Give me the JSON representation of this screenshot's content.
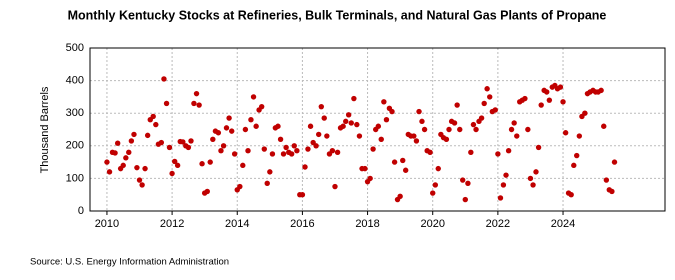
{
  "chart_data": {
    "type": "scatter",
    "title": "Monthly Kentucky Stocks at Refineries, Bulk Terminals, and Natural Gas Plants of Propane",
    "y_label": "Thousand Barrels",
    "source": "Source: U.S. Energy Information Administration",
    "color": "#c00000",
    "grid": true,
    "xlim": [
      2009.48,
      2027.13
    ],
    "xticks": [
      2010,
      2012,
      2014,
      2016,
      2018,
      2020,
      2022,
      2024
    ],
    "ylim": [
      0,
      500
    ],
    "yticks": [
      0,
      100,
      200,
      300,
      400,
      500
    ],
    "x": [
      2010,
      2010.08,
      2010.17,
      2010.25,
      2010.33,
      2010.42,
      2010.5,
      2010.58,
      2010.67,
      2010.75,
      2010.83,
      2010.92,
      2011,
      2011.08,
      2011.17,
      2011.25,
      2011.33,
      2011.42,
      2011.5,
      2011.58,
      2011.67,
      2011.75,
      2011.83,
      2011.92,
      2012,
      2012.08,
      2012.17,
      2012.25,
      2012.33,
      2012.42,
      2012.5,
      2012.58,
      2012.67,
      2012.75,
      2012.83,
      2012.92,
      2013,
      2013.08,
      2013.17,
      2013.25,
      2013.33,
      2013.42,
      2013.5,
      2013.58,
      2013.67,
      2013.75,
      2013.83,
      2013.92,
      2014,
      2014.08,
      2014.17,
      2014.25,
      2014.33,
      2014.42,
      2014.5,
      2014.58,
      2014.67,
      2014.75,
      2014.83,
      2014.92,
      2015,
      2015.08,
      2015.17,
      2015.25,
      2015.33,
      2015.42,
      2015.5,
      2015.58,
      2015.67,
      2015.75,
      2015.83,
      2015.92,
      2016,
      2016.08,
      2016.17,
      2016.25,
      2016.33,
      2016.42,
      2016.5,
      2016.58,
      2016.67,
      2016.75,
      2016.83,
      2016.92,
      2017,
      2017.08,
      2017.17,
      2017.25,
      2017.33,
      2017.42,
      2017.5,
      2017.58,
      2017.67,
      2017.75,
      2017.83,
      2017.92,
      2018,
      2018.08,
      2018.17,
      2018.25,
      2018.33,
      2018.42,
      2018.5,
      2018.58,
      2018.67,
      2018.75,
      2018.83,
      2018.92,
      2019,
      2019.08,
      2019.17,
      2019.25,
      2019.33,
      2019.42,
      2019.5,
      2019.58,
      2019.67,
      2019.75,
      2019.83,
      2019.92,
      2020,
      2020.08,
      2020.17,
      2020.25,
      2020.33,
      2020.42,
      2020.5,
      2020.58,
      2020.67,
      2020.75,
      2020.83,
      2020.92,
      2021,
      2021.08,
      2021.17,
      2021.25,
      2021.33,
      2021.42,
      2021.5,
      2021.58,
      2021.67,
      2021.75,
      2021.83,
      2021.92,
      2022,
      2022.08,
      2022.17,
      2022.25,
      2022.33,
      2022.42,
      2022.5,
      2022.58,
      2022.67,
      2022.75,
      2022.83,
      2022.92,
      2023,
      2023.08,
      2023.17,
      2023.25,
      2023.33,
      2023.42,
      2023.5,
      2023.58,
      2023.67,
      2023.75,
      2023.83,
      2023.92,
      2024,
      2024.08,
      2024.17,
      2024.25,
      2024.33,
      2024.42,
      2024.5,
      2024.58,
      2024.67,
      2024.75,
      2024.83,
      2024.92,
      2025,
      2025.08,
      2025.17,
      2025.25,
      2025.33,
      2025.42,
      2025.5,
      2025.58
    ],
    "values": [
      150,
      120,
      180,
      178,
      208,
      130,
      140,
      163,
      180,
      215,
      235,
      133,
      95,
      80,
      130,
      232,
      280,
      290,
      265,
      205,
      210,
      405,
      330,
      195,
      115,
      152,
      140,
      213,
      212,
      200,
      195,
      215,
      330,
      360,
      325,
      145,
      55,
      60,
      150,
      220,
      245,
      240,
      185,
      200,
      255,
      285,
      245,
      175,
      65,
      75,
      140,
      250,
      185,
      280,
      350,
      260,
      310,
      320,
      190,
      85,
      120,
      175,
      255,
      260,
      220,
      175,
      195,
      180,
      175,
      200,
      185,
      50,
      50,
      135,
      190,
      260,
      210,
      200,
      235,
      320,
      285,
      230,
      175,
      185,
      75,
      180,
      255,
      260,
      275,
      295,
      270,
      345,
      265,
      230,
      130,
      130,
      90,
      100,
      190,
      250,
      260,
      220,
      335,
      280,
      315,
      305,
      150,
      35,
      45,
      155,
      125,
      235,
      230,
      230,
      215,
      305,
      275,
      250,
      185,
      180,
      55,
      80,
      130,
      235,
      225,
      220,
      250,
      275,
      270,
      325,
      250,
      95,
      35,
      85,
      180,
      265,
      250,
      275,
      285,
      330,
      375,
      350,
      305,
      310,
      175,
      40,
      80,
      110,
      185,
      250,
      270,
      230,
      335,
      340,
      345,
      250,
      100,
      80,
      120,
      195,
      325,
      370,
      365,
      340,
      380,
      385,
      375,
      380,
      335,
      240,
      55,
      50,
      140,
      170,
      230,
      290,
      300,
      360,
      365,
      370,
      365,
      365,
      370,
      260,
      95,
      65,
      60,
      150
    ]
  }
}
